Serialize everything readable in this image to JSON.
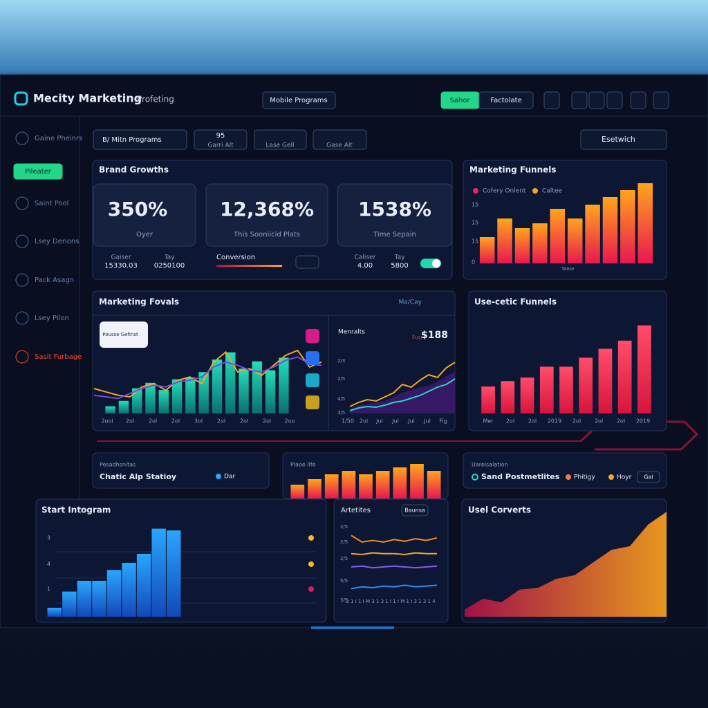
{
  "header": {
    "brand": "Mecity Marketing",
    "subtitle": "Profeting",
    "program_menu": "Mobile Programs",
    "toggle_on": "Sahor",
    "toggle_off": "Factolate"
  },
  "sidebar": {
    "items": [
      "Gaine Pheinrs",
      "Saint Pool",
      "Lsey Derions",
      "Pack Asagn",
      "Lsey Pilon",
      "Sasit Furbage"
    ],
    "button": "Pileater"
  },
  "filters": {
    "program": "B/ Mitn Programs",
    "count": 95,
    "count_label": "Garri Alt",
    "cell": "Lase Gell",
    "case": "Gase Alt",
    "search": "Esetwich"
  },
  "brand_growth": {
    "title": "Brand Growths",
    "kpis": [
      {
        "value": "350%",
        "label": "Oyer",
        "left_title": "Gaiser",
        "left_value": "15330.03",
        "right_title": "Tay",
        "right_value": "0250100"
      },
      {
        "value": "12,368%",
        "label": "This Sooniicid Plats",
        "footer": "Conversion"
      },
      {
        "value": "1538%",
        "label": "Time Sepain",
        "left_title": "Caliser",
        "left_value": "4.00",
        "right_title": "Tay",
        "right_value": "5800"
      }
    ]
  },
  "marketing_funnels": {
    "title": "Marketing Funnels",
    "legend": [
      {
        "name": "Cofery Onlent",
        "color": "#e8275e"
      },
      {
        "name": "Caltee",
        "color": "#f5a623"
      }
    ],
    "y_labels": [
      "15",
      "15",
      "15",
      "0"
    ],
    "x_label": "Tame",
    "values": [
      38,
      65,
      51,
      58,
      79,
      65,
      85,
      96,
      106,
      116
    ],
    "ylim": [
      0,
      120
    ]
  },
  "marketing_fovals": {
    "title": "Marketing Fovals",
    "menu": "Ma/Cay",
    "bubble": "Pousse Gefinst",
    "x_labels": [
      "2ool",
      "2ol",
      "2ol",
      "2ol",
      "3ol",
      "2ol",
      "2ol",
      "2ol",
      "2oo"
    ],
    "bars": [
      8,
      14,
      28,
      34,
      26,
      38,
      40,
      46,
      60,
      68,
      50,
      58,
      48,
      62
    ],
    "bars_ylim": [
      0,
      100
    ],
    "lines": [
      {
        "name": "orange",
        "color": "#f5a623",
        "values": [
          30,
          26,
          22,
          20,
          32,
          36,
          28,
          40,
          44,
          36,
          62,
          74,
          50,
          54,
          46,
          58,
          70,
          76,
          56,
          62
        ]
      },
      {
        "name": "purple",
        "color": "#7a4bd8",
        "values": [
          22,
          20,
          18,
          24,
          30,
          34,
          32,
          38,
          40,
          44,
          56,
          62,
          58,
          52,
          50,
          56,
          64,
          68,
          60,
          58
        ]
      }
    ],
    "lines_ylim": [
      0,
      100
    ],
    "side_title": "Menralts",
    "side_prefix": "Fuu",
    "side_value": "$188",
    "side_y_labels": [
      "2/3",
      "2/5",
      "4/5",
      "3/5"
    ],
    "side_x_labels": [
      "1/50",
      "2ol",
      "Jul",
      "Jul",
      "Jul",
      "Jul",
      "Fig"
    ],
    "side_series": [
      {
        "name": "orange",
        "color": "#f5a623",
        "values": [
          10,
          16,
          20,
          18,
          24,
          30,
          42,
          38,
          48,
          56,
          52,
          66,
          74
        ]
      },
      {
        "name": "purple",
        "color": "#8a3cc8",
        "values": [
          6,
          12,
          14,
          16,
          18,
          24,
          30,
          34,
          38,
          40,
          46,
          54,
          60
        ]
      },
      {
        "name": "teal",
        "color": "#2ad4c8",
        "values": [
          4,
          8,
          10,
          9,
          12,
          16,
          18,
          22,
          26,
          32,
          38,
          42,
          50
        ]
      }
    ],
    "side_ylim": [
      0,
      100
    ]
  },
  "usecetic_funnels": {
    "title": "Use-cetic Funnels",
    "x_labels": [
      "Mer",
      "2oI",
      "2oI",
      "2019",
      "2oI",
      "2oI",
      "2oI",
      "2019"
    ],
    "values": [
      30,
      36,
      40,
      52,
      52,
      62,
      72,
      81,
      98
    ],
    "ylim": [
      0,
      100
    ]
  },
  "station": {
    "caption": "Pesadhsnitas",
    "title": "Chatic Alp Statioy",
    "tag": "Dar"
  },
  "plaoe": {
    "title": "Plaoe Ilfe",
    "values": [
      20,
      28,
      35,
      40,
      35,
      40,
      45,
      50,
      40
    ],
    "ylim": [
      0,
      60
    ]
  },
  "postmetlites": {
    "caption": "Uarelsalation",
    "title": "Sand Postmetlites",
    "tags": [
      "Phitigy",
      "Hoyr"
    ],
    "menu": "Gal"
  },
  "start_intogram": {
    "title": "Start Intogram",
    "y_labels": [
      "3",
      "4",
      "1"
    ],
    "values": [
      10,
      28,
      40,
      40,
      52,
      60,
      70,
      98,
      96
    ],
    "ylim": [
      0,
      100
    ],
    "dots": [
      "#f5b82a",
      "#f5b82a",
      "#d81b6a"
    ]
  },
  "artetites": {
    "title": "Artetites",
    "button": "Baunsa",
    "y_labels": [
      "2/5",
      "2/5",
      "2/5",
      "5/5",
      "3/5"
    ],
    "x_label": "2 1 I 1 I M 3 1 3 1 I 1 I M 1 I 3 1 3 1 4",
    "series": [
      {
        "name": "a",
        "color": "#f08a24",
        "values": [
          88,
          80,
          82,
          80,
          83,
          81,
          84,
          82,
          85
        ]
      },
      {
        "name": "b",
        "color": "#f5a623",
        "values": [
          66,
          65,
          67,
          66,
          66,
          65,
          67,
          66,
          66
        ]
      },
      {
        "name": "c",
        "color": "#8a5cf0",
        "values": [
          50,
          51,
          49,
          50,
          51,
          50,
          49,
          50,
          51
        ]
      },
      {
        "name": "d",
        "color": "#2a8cff",
        "values": [
          24,
          26,
          25,
          27,
          26,
          28,
          26,
          27,
          28
        ]
      }
    ],
    "ylim": [
      0,
      100
    ]
  },
  "usel_corverts": {
    "title": "Usel Corverts",
    "values": [
      8,
      20,
      16,
      30,
      32,
      42,
      46,
      60,
      74,
      78,
      102,
      116
    ],
    "ylim": [
      0,
      130
    ]
  }
}
